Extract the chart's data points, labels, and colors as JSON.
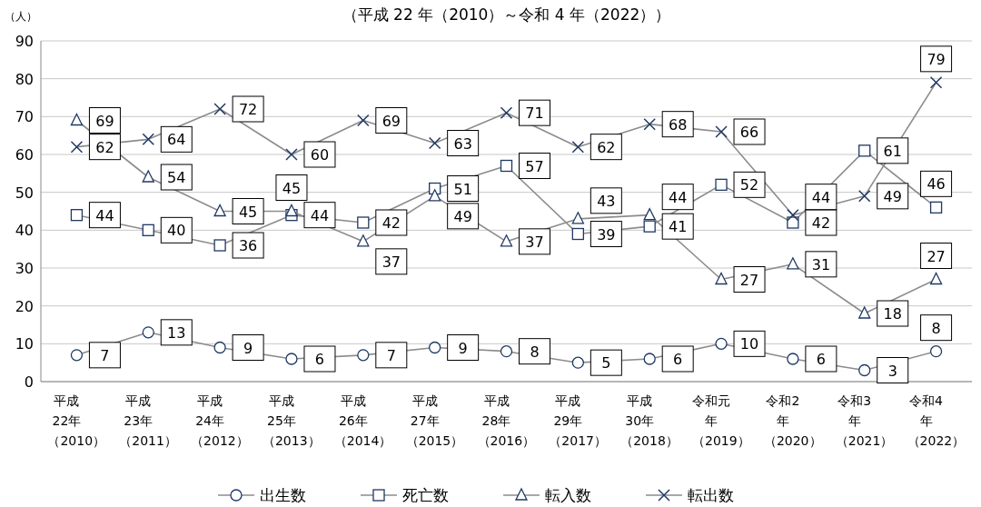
{
  "chart_data": {
    "type": "line",
    "title": "（平成 22 年（2010）～令和 4 年（2022））",
    "ylabel": "（人）",
    "categories": [
      "平成22年（2010）",
      "平成23年（2011）",
      "平成24年（2012）",
      "平成25年（2013）",
      "平成26年（2014）",
      "平成27年（2015）",
      "平成28年（2016）",
      "平成29年（2017）",
      "平成30年（2018）",
      "令和元年（2019）",
      "令和2年（2020）",
      "令和3年（2021）",
      "令和4年（2022）"
    ],
    "ylim": [
      0,
      90
    ],
    "yticks": [
      0,
      10,
      20,
      30,
      40,
      50,
      60,
      70,
      80,
      90
    ],
    "grid": "y",
    "legend": "bottom",
    "data_labels": true,
    "series": [
      {
        "name": "出生数",
        "color": "#1f3864",
        "marker": "circle",
        "values": [
          7,
          13,
          9,
          6,
          7,
          9,
          8,
          5,
          6,
          10,
          6,
          3,
          8
        ]
      },
      {
        "name": "死亡数",
        "color": "#1f3864",
        "marker": "square",
        "values": [
          44,
          40,
          36,
          44,
          42,
          51,
          57,
          39,
          41,
          52,
          42,
          61,
          46
        ]
      },
      {
        "name": "転入数",
        "color": "#1f3864",
        "marker": "triangle",
        "values": [
          69,
          54,
          45,
          45,
          37,
          49,
          37,
          43,
          44,
          27,
          31,
          18,
          27
        ]
      },
      {
        "name": "転出数",
        "color": "#1f3864",
        "marker": "cross",
        "values": [
          62,
          64,
          72,
          60,
          69,
          63,
          71,
          62,
          68,
          66,
          44,
          49,
          79
        ]
      }
    ]
  }
}
